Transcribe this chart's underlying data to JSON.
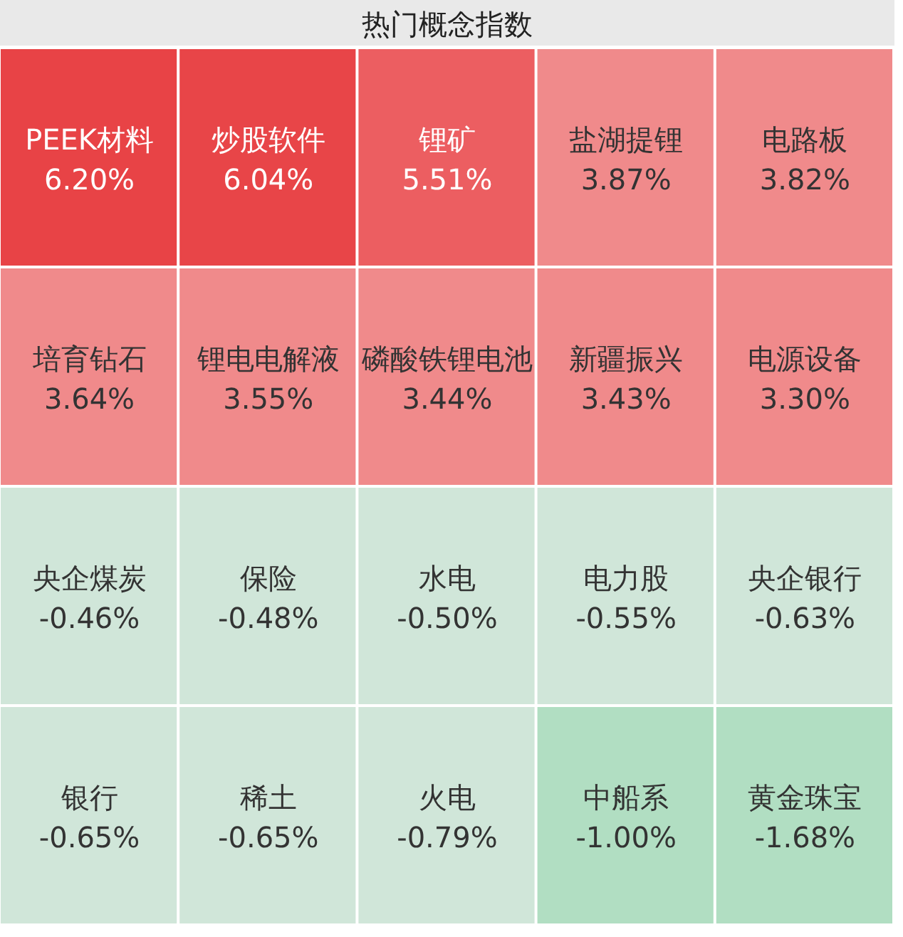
{
  "chart_data": {
    "type": "other",
    "title": "热门概念指数",
    "categories": [
      "PEEK材料",
      "炒股软件",
      "锂矿",
      "盐湖提锂",
      "电路板",
      "培育钻石",
      "锂电电解液",
      "磷酸铁锂电池",
      "新疆振兴",
      "电源设备",
      "央企煤炭",
      "保险",
      "水电",
      "电力股",
      "央企银行",
      "银行",
      "稀土",
      "火电",
      "中船系",
      "黄金珠宝"
    ],
    "values": [
      6.2,
      6.04,
      5.51,
      3.87,
      3.82,
      3.64,
      3.55,
      3.44,
      3.43,
      3.3,
      -0.46,
      -0.48,
      -0.5,
      -0.55,
      -0.63,
      -0.65,
      -0.65,
      -0.79,
      -1.0,
      -1.68
    ],
    "value_labels": [
      "6.20%",
      "6.04%",
      "5.51%",
      "3.87%",
      "3.82%",
      "3.64%",
      "3.55%",
      "3.44%",
      "3.43%",
      "3.30%",
      "-0.46%",
      "-0.48%",
      "-0.50%",
      "-0.55%",
      "-0.63%",
      "-0.65%",
      "-0.65%",
      "-0.79%",
      "-1.00%",
      "-1.68%"
    ],
    "colors": [
      "#e84346",
      "#e84548",
      "#ec5e61",
      "#f08a8b",
      "#f08a8b",
      "#f08a8b",
      "#f08a8b",
      "#f08a8b",
      "#f08a8b",
      "#f08a8b",
      "#d0e6d9",
      "#d0e6d9",
      "#d0e6d9",
      "#d0e6d9",
      "#d0e6d9",
      "#d0e6d9",
      "#d0e6d9",
      "#d0e6d9",
      "#b1dec2",
      "#b1dec2"
    ]
  }
}
